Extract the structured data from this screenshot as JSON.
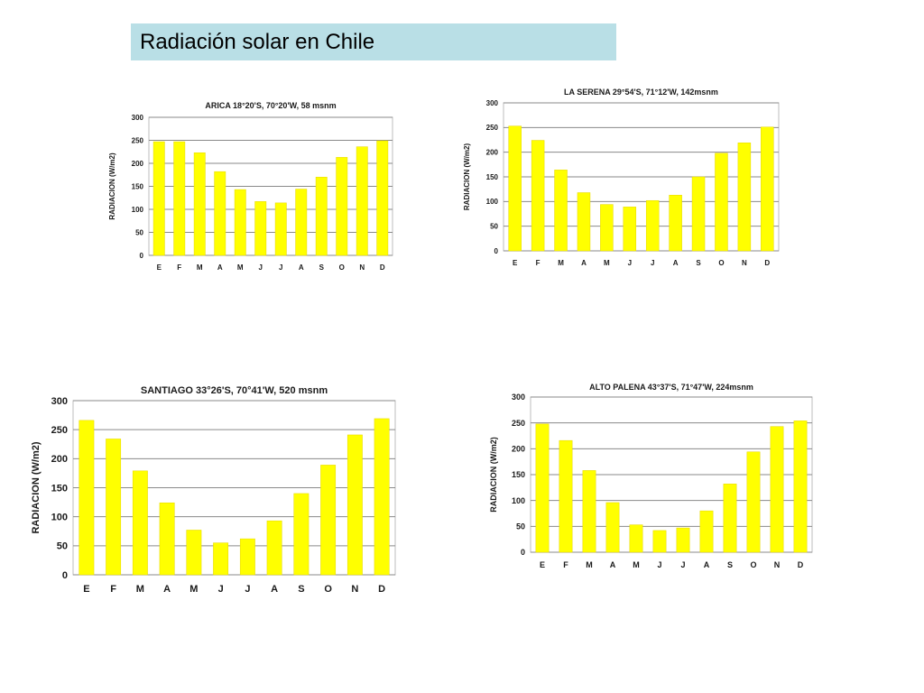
{
  "slide": {
    "title": "Radiación solar en Chile"
  },
  "colors": {
    "bar": "#ffff00",
    "bar_stroke": "#e6d600",
    "plot_bg": "#ffffff",
    "grid": "#8a8a8a",
    "frame": "#bdbdbd"
  },
  "chart_data": [
    {
      "type": "bar",
      "title": "ARICA 18°20'S, 70°20'W, 58 msnm",
      "ylabel": "RADIACION (W/m2)",
      "xlabel": "",
      "categories": [
        "E",
        "F",
        "M",
        "A",
        "M",
        "J",
        "J",
        "A",
        "S",
        "O",
        "N",
        "D"
      ],
      "values": [
        247,
        247,
        223,
        182,
        143,
        117,
        114,
        144,
        170,
        213,
        236,
        249
      ],
      "yticks": [
        "0",
        "50",
        "100",
        "150",
        "200",
        "250",
        "300"
      ],
      "ylim": [
        0,
        300
      ],
      "grid": true
    },
    {
      "type": "bar",
      "title": "LA SERENA 29°54'S, 71°12'W, 142msnm",
      "ylabel": "RADIACION (W/m2)",
      "xlabel": "",
      "categories": [
        "E",
        "F",
        "M",
        "A",
        "M",
        "J",
        "J",
        "A",
        "S",
        "O",
        "N",
        "D"
      ],
      "values": [
        253,
        224,
        164,
        118,
        94,
        89,
        102,
        113,
        150,
        198,
        219,
        251
      ],
      "yticks": [
        "0",
        "50",
        "100",
        "150",
        "200",
        "250",
        "300"
      ],
      "ylim": [
        0,
        300
      ],
      "grid": true
    },
    {
      "type": "bar",
      "title": "SANTIAGO 33°26'S, 70°41'W, 520 msnm",
      "ylabel": "RADIACION (W/m2)",
      "xlabel": "",
      "categories": [
        "E",
        "F",
        "M",
        "A",
        "M",
        "J",
        "J",
        "A",
        "S",
        "O",
        "N",
        "D"
      ],
      "values": [
        266,
        234,
        179,
        124,
        77,
        55,
        62,
        93,
        140,
        189,
        241,
        269
      ],
      "yticks": [
        "0",
        "50",
        "100",
        "150",
        "200",
        "250",
        "300"
      ],
      "ylim": [
        0,
        300
      ],
      "grid": true
    },
    {
      "type": "bar",
      "title": "ALTO PALENA 43°37'S, 71°47'W, 224msnm",
      "ylabel": "RADIACION (W/m2)",
      "xlabel": "",
      "categories": [
        "E",
        "F",
        "M",
        "A",
        "M",
        "J",
        "J",
        "A",
        "S",
        "O",
        "N",
        "D"
      ],
      "values": [
        248,
        216,
        158,
        96,
        53,
        42,
        47,
        80,
        132,
        194,
        243,
        254
      ],
      "yticks": [
        "0",
        "50",
        "100",
        "150",
        "200",
        "250",
        "300"
      ],
      "ylim": [
        0,
        300
      ],
      "grid": true
    }
  ]
}
